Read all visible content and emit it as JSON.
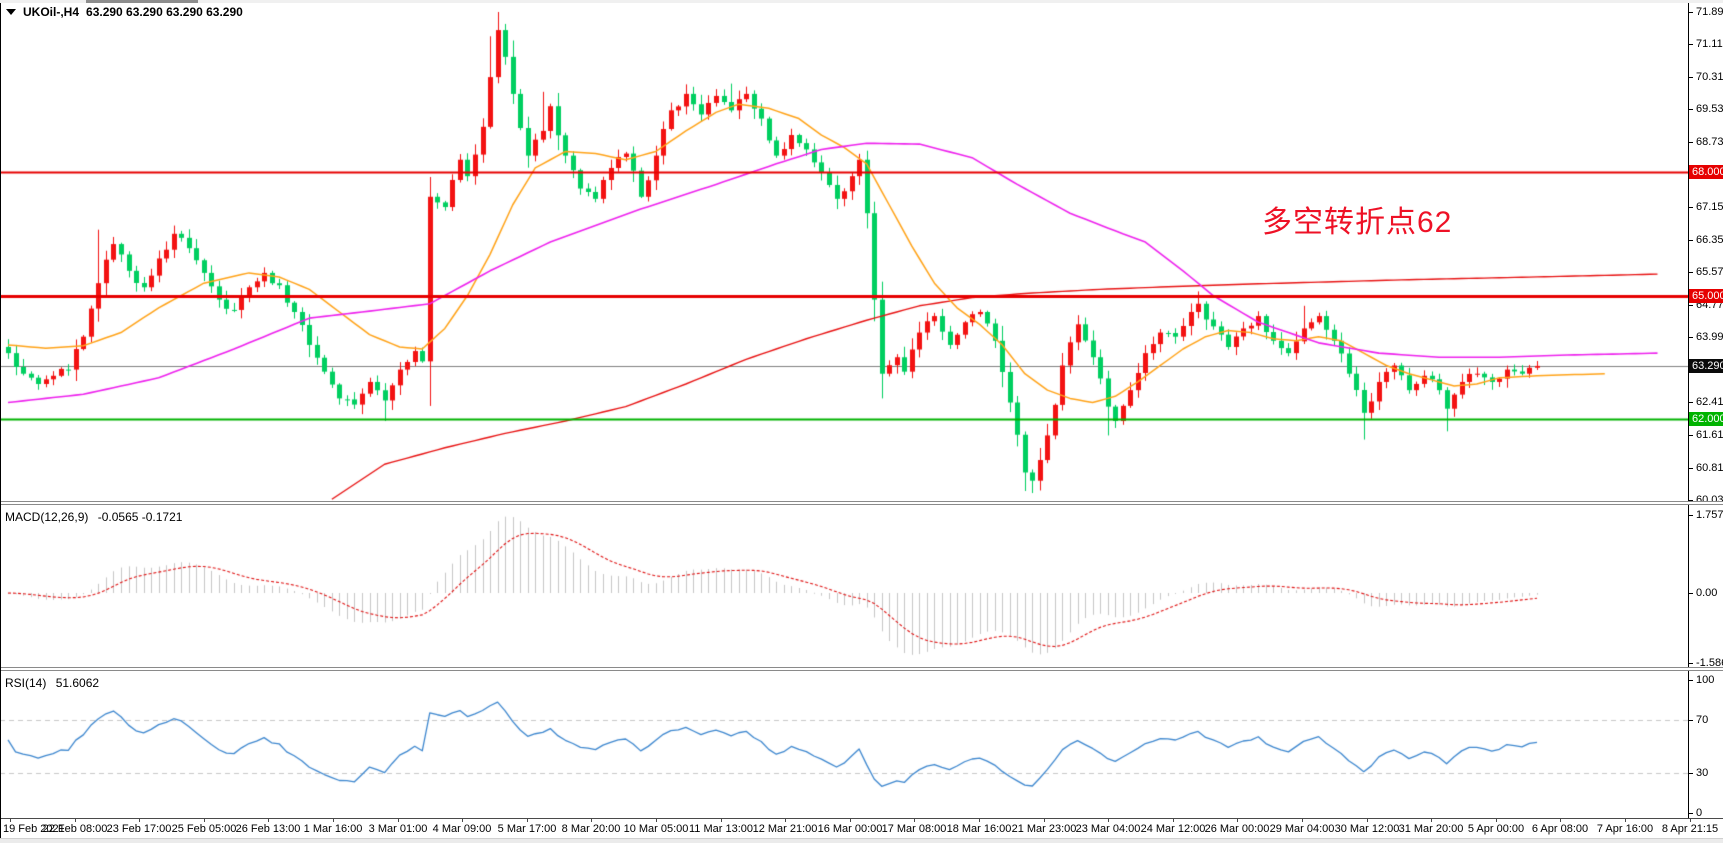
{
  "window": {
    "symbol": "UKOil-,H4",
    "ohlc": "63.290 63.290 63.290 63.290"
  },
  "annotation": {
    "text": "多空转折点62",
    "color": "#ee1126"
  },
  "chart_data": [
    {
      "type": "candlestick",
      "title": "UKOil- H4 price chart",
      "num_candles": 204,
      "y_ticks": [
        "71.890",
        "71.110",
        "70.310",
        "69.530",
        "68.730",
        "67.940",
        "67.150",
        "66.350",
        "65.570",
        "64.770",
        "63.990",
        "63.190",
        "62.410",
        "61.610",
        "60.810",
        "60.030"
      ],
      "x_labels": [
        "19 Feb 2021",
        "22 Feb 08:00",
        "23 Feb 17:00",
        "25 Feb 05:00",
        "26 Feb 13:00",
        "1 Mar 16:00",
        "3 Mar 01:00",
        "4 Mar 09:00",
        "5 Mar 17:00",
        "8 Mar 20:00",
        "10 Mar 05:00",
        "11 Mar 13:00",
        "12 Mar 21:00",
        "16 Mar 00:00",
        "17 Mar 08:00",
        "18 Mar 16:00",
        "21 Mar 23:00",
        "23 Mar 04:00",
        "24 Mar 12:00",
        "26 Mar 00:00",
        "29 Mar 04:00",
        "30 Mar 12:00",
        "31 Mar 20:00",
        "5 Apr 00:00",
        "6 Apr 08:00",
        "7 Apr 16:00",
        "8 Apr 21:15"
      ],
      "bull_color": "#f31212",
      "bear_color": "#00cf60",
      "close_anchors": [
        [
          0,
          63.6
        ],
        [
          2,
          63.1
        ],
        [
          4,
          62.85
        ],
        [
          6,
          63.05
        ],
        [
          8,
          63.2
        ],
        [
          10,
          64.0
        ],
        [
          12,
          65.3
        ],
        [
          14,
          66.25
        ],
        [
          16,
          65.6
        ],
        [
          18,
          65.2
        ],
        [
          20,
          65.9
        ],
        [
          22,
          66.5
        ],
        [
          24,
          66.15
        ],
        [
          26,
          65.55
        ],
        [
          28,
          64.9
        ],
        [
          30,
          64.65
        ],
        [
          32,
          65.2
        ],
        [
          34,
          65.55
        ],
        [
          36,
          65.25
        ],
        [
          38,
          64.6
        ],
        [
          40,
          63.8
        ],
        [
          42,
          63.15
        ],
        [
          44,
          62.5
        ],
        [
          46,
          62.35
        ],
        [
          48,
          62.9
        ],
        [
          50,
          62.45
        ],
        [
          52,
          63.2
        ],
        [
          54,
          63.65
        ],
        [
          55,
          63.4
        ],
        [
          56,
          67.4
        ],
        [
          58,
          67.15
        ],
        [
          60,
          68.3
        ],
        [
          61,
          67.9
        ],
        [
          63,
          69.1
        ],
        [
          65,
          71.45
        ],
        [
          66,
          70.8
        ],
        [
          67,
          69.9
        ],
        [
          69,
          68.4
        ],
        [
          71,
          69.0
        ],
        [
          72,
          69.6
        ],
        [
          74,
          68.4
        ],
        [
          76,
          67.6
        ],
        [
          78,
          67.35
        ],
        [
          80,
          68.1
        ],
        [
          82,
          68.45
        ],
        [
          84,
          67.4
        ],
        [
          86,
          68.4
        ],
        [
          88,
          69.5
        ],
        [
          90,
          69.9
        ],
        [
          92,
          69.4
        ],
        [
          94,
          69.85
        ],
        [
          96,
          69.5
        ],
        [
          98,
          69.9
        ],
        [
          100,
          69.3
        ],
        [
          102,
          68.4
        ],
        [
          104,
          68.9
        ],
        [
          106,
          68.55
        ],
        [
          108,
          68.0
        ],
        [
          110,
          67.35
        ],
        [
          112,
          67.9
        ],
        [
          113,
          68.3
        ],
        [
          114,
          67.0
        ],
        [
          115,
          64.9
        ],
        [
          116,
          63.1
        ],
        [
          118,
          63.5
        ],
        [
          119,
          63.15
        ],
        [
          121,
          64.1
        ],
        [
          123,
          64.5
        ],
        [
          125,
          63.8
        ],
        [
          127,
          64.35
        ],
        [
          129,
          64.6
        ],
        [
          131,
          63.9
        ],
        [
          133,
          62.4
        ],
        [
          135,
          60.7
        ],
        [
          136,
          60.5
        ],
        [
          138,
          61.6
        ],
        [
          140,
          63.3
        ],
        [
          142,
          64.3
        ],
        [
          144,
          63.5
        ],
        [
          146,
          62.3
        ],
        [
          147,
          61.95
        ],
        [
          149,
          62.7
        ],
        [
          151,
          63.6
        ],
        [
          153,
          64.1
        ],
        [
          155,
          64.0
        ],
        [
          157,
          64.6
        ],
        [
          158,
          64.8
        ],
        [
          160,
          64.25
        ],
        [
          162,
          63.75
        ],
        [
          164,
          64.2
        ],
        [
          166,
          64.5
        ],
        [
          168,
          63.9
        ],
        [
          170,
          63.6
        ],
        [
          172,
          64.2
        ],
        [
          174,
          64.5
        ],
        [
          176,
          63.9
        ],
        [
          178,
          63.1
        ],
        [
          180,
          62.15
        ],
        [
          182,
          62.9
        ],
        [
          184,
          63.3
        ],
        [
          186,
          62.7
        ],
        [
          188,
          63.05
        ],
        [
          190,
          62.7
        ],
        [
          191,
          62.25
        ],
        [
          193,
          62.9
        ],
        [
          195,
          63.1
        ],
        [
          197,
          62.9
        ],
        [
          199,
          63.2
        ],
        [
          201,
          63.1
        ],
        [
          203,
          63.29
        ]
      ],
      "wick_events": [
        {
          "i": 12,
          "high": 66.6
        },
        {
          "i": 22,
          "high": 66.7
        },
        {
          "i": 50,
          "low": 61.95
        },
        {
          "i": 64,
          "high": 71.3
        },
        {
          "i": 65,
          "high": 71.89
        },
        {
          "i": 66,
          "high": 71.6
        },
        {
          "i": 71,
          "high": 69.95
        },
        {
          "i": 96,
          "high": 70.15
        },
        {
          "i": 116,
          "low": 62.5
        },
        {
          "i": 135,
          "low": 60.25
        },
        {
          "i": 136,
          "low": 60.2
        },
        {
          "i": 146,
          "low": 61.6
        },
        {
          "i": 158,
          "high": 65.1
        },
        {
          "i": 172,
          "high": 64.75
        },
        {
          "i": 180,
          "low": 61.5
        },
        {
          "i": 191,
          "low": 61.7
        }
      ],
      "moving_averages": [
        {
          "name": "slow-ma",
          "color": "#e81212",
          "width": 1.4,
          "anchors": [
            [
              43,
              60.05
            ],
            [
              50,
              60.9
            ],
            [
              58,
              61.3
            ],
            [
              66,
              61.65
            ],
            [
              74,
              61.95
            ],
            [
              82,
              62.3
            ],
            [
              90,
              62.85
            ],
            [
              98,
              63.45
            ],
            [
              106,
              63.95
            ],
            [
              114,
              64.4
            ],
            [
              121,
              64.75
            ],
            [
              128,
              64.95
            ],
            [
              135,
              65.05
            ],
            [
              145,
              65.15
            ],
            [
              155,
              65.22
            ],
            [
              165,
              65.28
            ],
            [
              175,
              65.33
            ],
            [
              185,
              65.38
            ],
            [
              195,
              65.42
            ],
            [
              205,
              65.46
            ],
            [
              219,
              65.52
            ]
          ]
        },
        {
          "name": "fast-ma",
          "color": "#ffa318",
          "width": 1.5,
          "anchors": [
            [
              0,
              63.8
            ],
            [
              5,
              63.72
            ],
            [
              10,
              63.78
            ],
            [
              15,
              64.1
            ],
            [
              20,
              64.7
            ],
            [
              26,
              65.3
            ],
            [
              32,
              65.55
            ],
            [
              36,
              65.45
            ],
            [
              40,
              65.15
            ],
            [
              44,
              64.6
            ],
            [
              48,
              64.05
            ],
            [
              52,
              63.75
            ],
            [
              55,
              63.7
            ],
            [
              58,
              64.2
            ],
            [
              61,
              65.0
            ],
            [
              64,
              66.0
            ],
            [
              67,
              67.2
            ],
            [
              70,
              68.1
            ],
            [
              74,
              68.5
            ],
            [
              78,
              68.45
            ],
            [
              82,
              68.3
            ],
            [
              86,
              68.5
            ],
            [
              90,
              69.0
            ],
            [
              94,
              69.45
            ],
            [
              97,
              69.65
            ],
            [
              101,
              69.55
            ],
            [
              105,
              69.3
            ],
            [
              108,
              68.9
            ],
            [
              111,
              68.6
            ],
            [
              114,
              68.2
            ],
            [
              117,
              67.2
            ],
            [
              120,
              66.2
            ],
            [
              123,
              65.3
            ],
            [
              126,
              64.7
            ],
            [
              129,
              64.3
            ],
            [
              132,
              63.8
            ],
            [
              135,
              63.1
            ],
            [
              138,
              62.7
            ],
            [
              141,
              62.5
            ],
            [
              144,
              62.4
            ],
            [
              147,
              62.55
            ],
            [
              150,
              62.9
            ],
            [
              153,
              63.3
            ],
            [
              156,
              63.7
            ],
            [
              159,
              64.0
            ],
            [
              162,
              64.15
            ],
            [
              165,
              64.1
            ],
            [
              168,
              63.95
            ],
            [
              171,
              63.9
            ],
            [
              174,
              64.0
            ],
            [
              177,
              63.9
            ],
            [
              180,
              63.6
            ],
            [
              183,
              63.3
            ],
            [
              186,
              63.1
            ],
            [
              189,
              62.95
            ],
            [
              192,
              62.8
            ],
            [
              195,
              62.85
            ],
            [
              198,
              63.0
            ],
            [
              203,
              63.05
            ],
            [
              212,
              63.1
            ]
          ]
        },
        {
          "name": "medium-ma",
          "color": "#ee22ee",
          "width": 1.6,
          "anchors": [
            [
              0,
              62.4
            ],
            [
              10,
              62.6
            ],
            [
              20,
              63.0
            ],
            [
              30,
              63.7
            ],
            [
              40,
              64.45
            ],
            [
              48,
              64.62
            ],
            [
              56,
              64.8
            ],
            [
              64,
              65.6
            ],
            [
              72,
              66.3
            ],
            [
              84,
              67.1
            ],
            [
              94,
              67.7
            ],
            [
              102,
              68.2
            ],
            [
              108,
              68.55
            ],
            [
              114,
              68.7
            ],
            [
              121,
              68.68
            ],
            [
              128,
              68.35
            ],
            [
              134,
              67.7
            ],
            [
              141,
              67.0
            ],
            [
              148,
              66.5
            ],
            [
              151,
              66.3
            ],
            [
              156,
              65.6
            ],
            [
              160,
              65.0
            ],
            [
              166,
              64.35
            ],
            [
              174,
              63.85
            ],
            [
              182,
              63.6
            ],
            [
              190,
              63.5
            ],
            [
              198,
              63.5
            ],
            [
              206,
              63.55
            ],
            [
              219,
              63.6
            ]
          ]
        }
      ],
      "hlines": [
        {
          "price": 68.0,
          "label": "68.000",
          "color": "#e60000",
          "width": 2
        },
        {
          "price": 65.0,
          "label": "65.000",
          "color": "#e60000",
          "width": 3
        },
        {
          "price": 62.0,
          "label": "62.000",
          "color": "#00b300",
          "width": 2
        }
      ],
      "current_price": {
        "value": 63.29,
        "label": "63.290",
        "line_color": "#808080",
        "badge_bg": "#0a0a0a"
      }
    },
    {
      "type": "macd_histogram",
      "label": "MACD(12,26,9)",
      "values": "-0.0565 -0.1721",
      "params": [
        12,
        26,
        9
      ],
      "y_ticks": [
        {
          "v": 1.7579,
          "label": "1.7579"
        },
        {
          "v": 0,
          "label": "0.00"
        },
        {
          "v": -1.5867,
          "label": "-1.5867"
        }
      ],
      "histogram_color": "#c6c6c6",
      "signal_color": "#e01414"
    },
    {
      "type": "rsi_line",
      "label": "RSI(14)",
      "value": "51.6062",
      "period": 14,
      "y_ticks": [
        {
          "v": 100,
          "label": "100"
        },
        {
          "v": 70,
          "label": "70"
        },
        {
          "v": 30,
          "label": "30"
        },
        {
          "v": 0,
          "label": "0"
        }
      ],
      "levels": [
        70,
        30
      ],
      "line_color": "#3d87cf",
      "level_color": "#c8c8c8"
    }
  ]
}
